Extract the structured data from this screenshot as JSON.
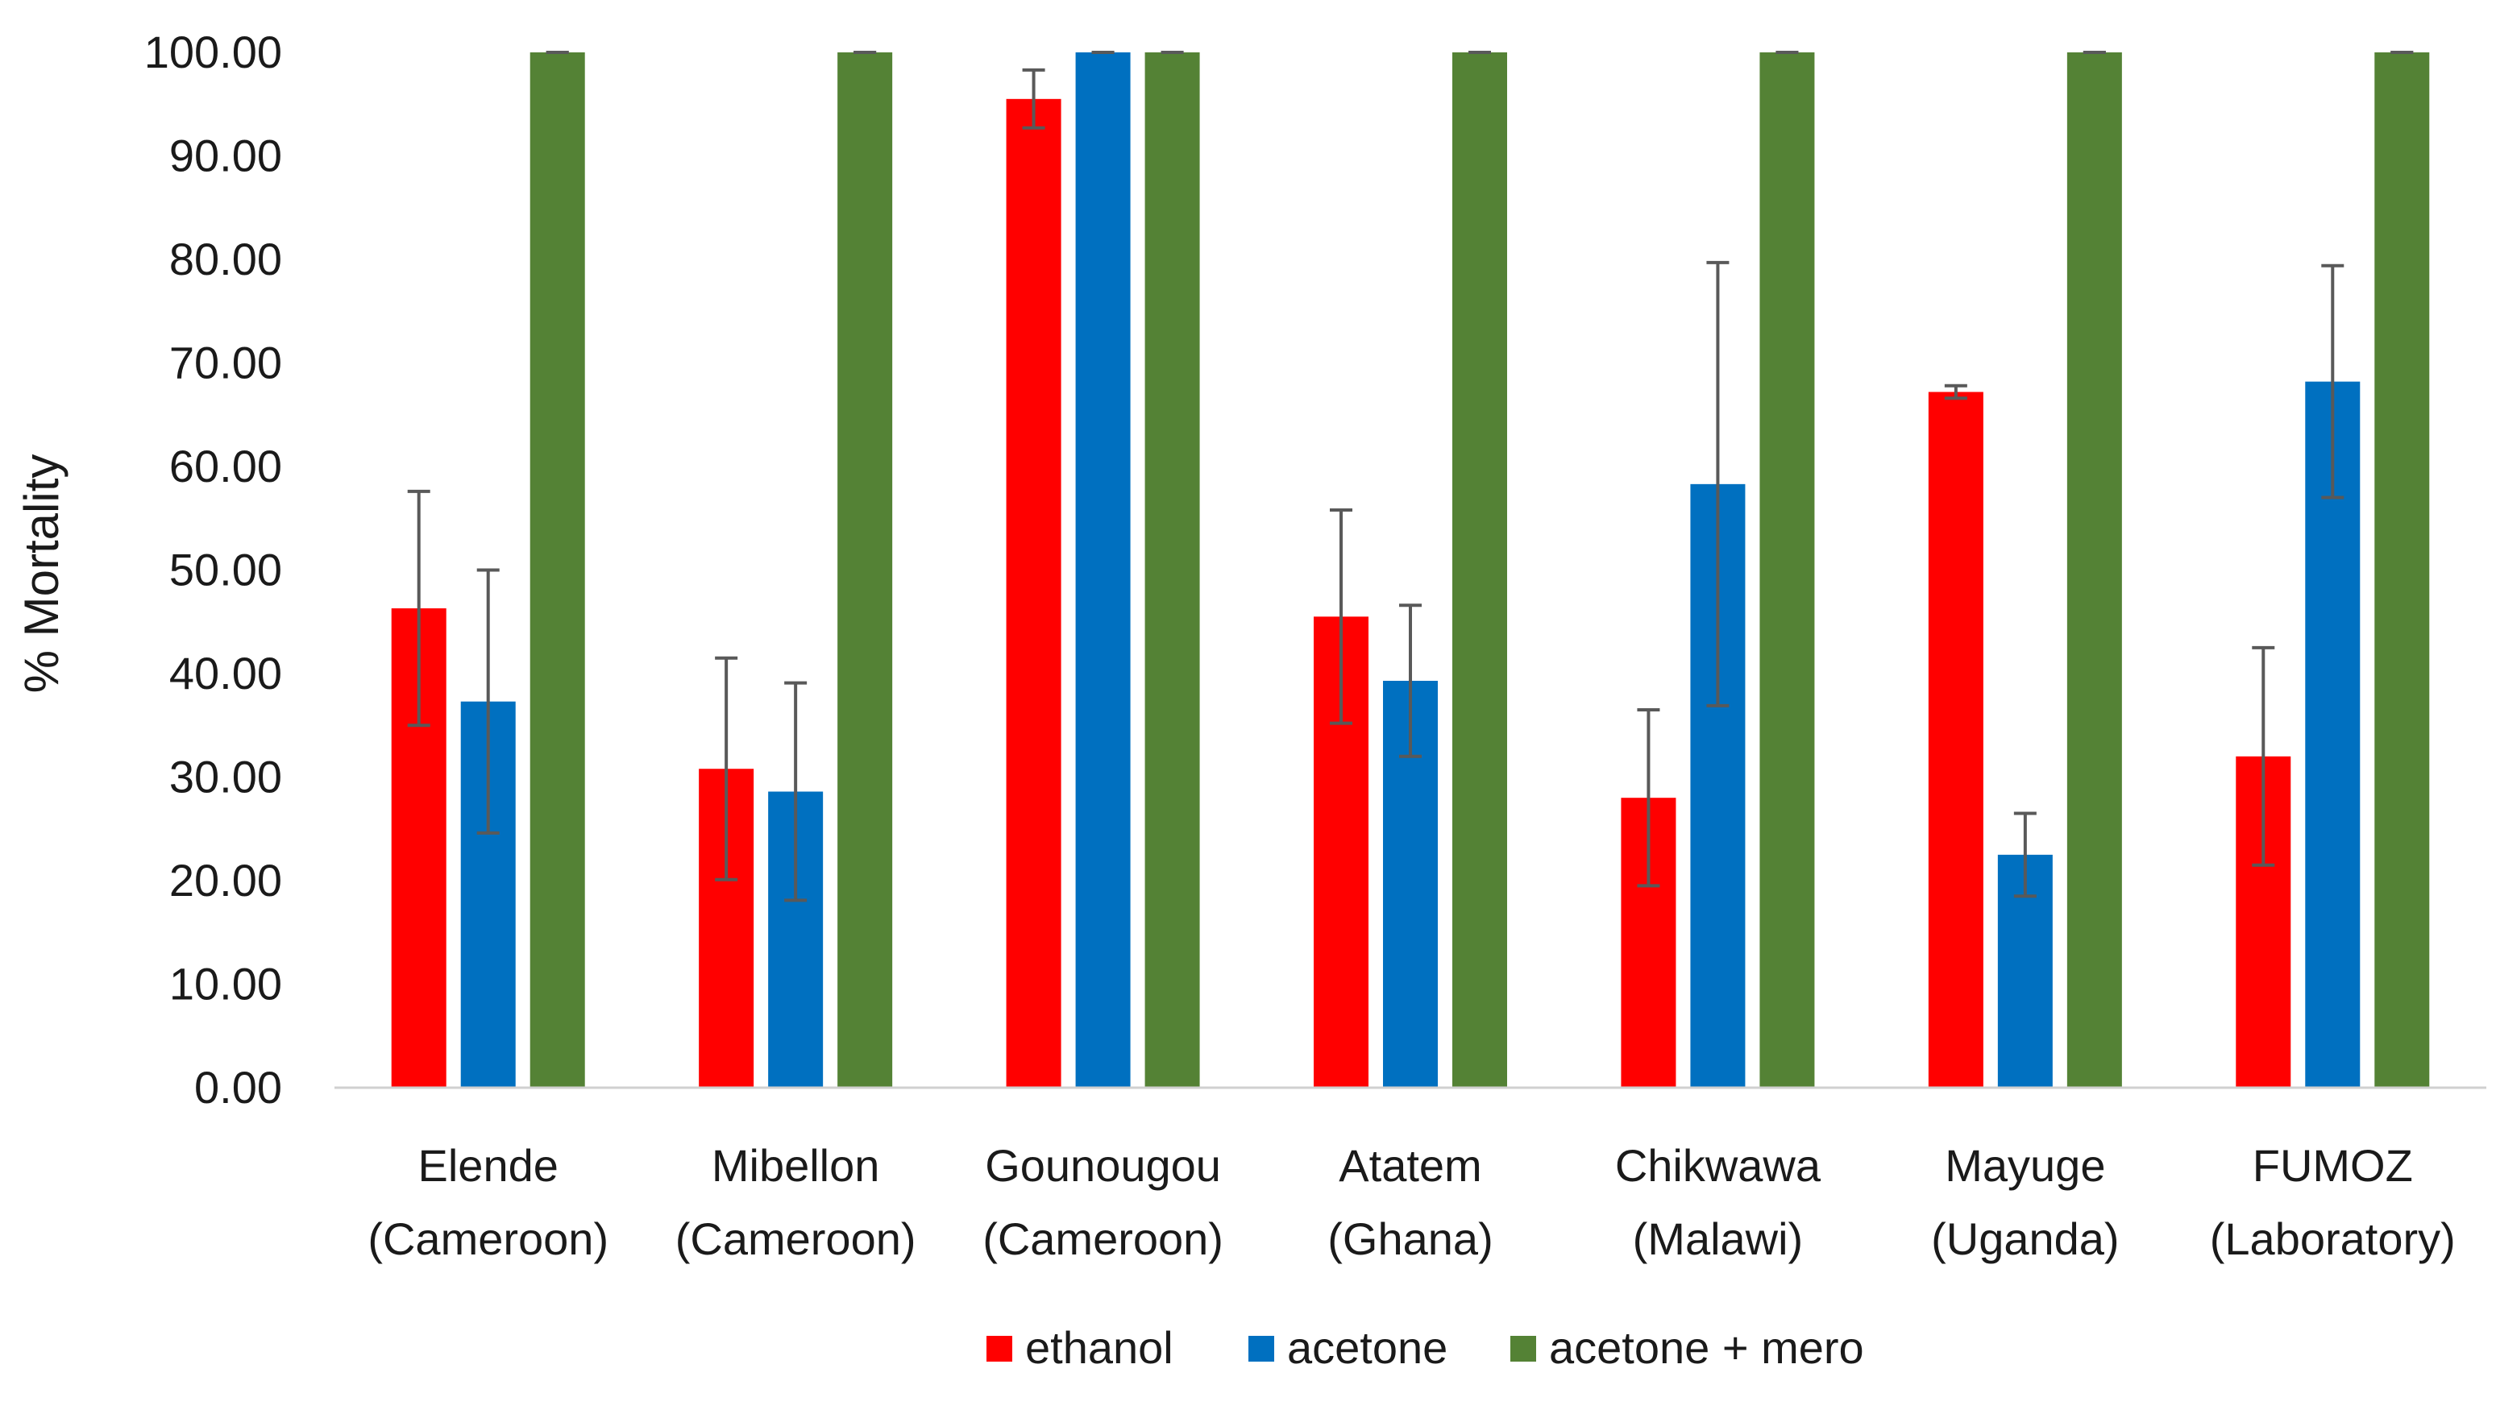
{
  "chart_data": {
    "type": "bar",
    "title": "",
    "xlabel": "",
    "ylabel": "% Mortality",
    "ylim": [
      0,
      100
    ],
    "yticks": [
      "0.00",
      "10.00",
      "20.00",
      "30.00",
      "40.00",
      "50.00",
      "60.00",
      "70.00",
      "80.00",
      "90.00",
      "100.00"
    ],
    "ytick_values": [
      0,
      10,
      20,
      30,
      40,
      50,
      60,
      70,
      80,
      90,
      100
    ],
    "grid": false,
    "legend_position": "bottom-center",
    "categories": [
      {
        "line1": "Elende",
        "line2": "(Cameroon)"
      },
      {
        "line1": "Mibellon",
        "line2": "(Cameroon)"
      },
      {
        "line1": "Gounougou",
        "line2": "(Cameroon)"
      },
      {
        "line1": "Atatem",
        "line2": "(Ghana)"
      },
      {
        "line1": "Chikwawa",
        "line2": "(Malawi)"
      },
      {
        "line1": "Mayuge",
        "line2": "(Uganda)"
      },
      {
        "line1": "FUMOZ",
        "line2": "(Laboratory)"
      }
    ],
    "series": [
      {
        "name": "ethanol",
        "color": "#ff0000",
        "values": [
          46.3,
          30.8,
          95.5,
          45.5,
          28.0,
          67.2,
          32.0
        ],
        "errors": [
          11.3,
          10.7,
          2.8,
          10.3,
          8.5,
          0.6,
          10.5
        ]
      },
      {
        "name": "acetone",
        "color": "#0070c0",
        "values": [
          37.3,
          28.6,
          100.0,
          39.3,
          58.3,
          22.5,
          68.2
        ],
        "errors": [
          12.7,
          10.5,
          0.0,
          7.3,
          21.4,
          4.0,
          11.2
        ]
      },
      {
        "name": "acetone + mero",
        "color": "#548235",
        "values": [
          100.0,
          100.0,
          100.0,
          100.0,
          100.0,
          100.0,
          100.0
        ],
        "errors": [
          0.0,
          0.0,
          0.0,
          0.0,
          0.0,
          0.0,
          0.0
        ]
      }
    ]
  }
}
